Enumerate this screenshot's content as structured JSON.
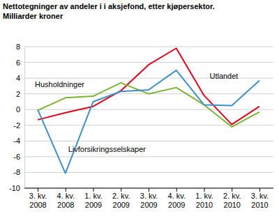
{
  "chart_data": {
    "type": "line",
    "title": "Nettotegninger av andeler i i aksjefond, etter kjøpersektor.",
    "subtitle": "Milliarder kroner",
    "categories": [
      "3. kv. 2008",
      "4. kv. 2008",
      "1. kv. 2009",
      "2. kv. 2009",
      "3. kv. 2009",
      "4. kv. 2009",
      "1. kv. 2010",
      "2. kv. 2010",
      "3. kv. 2010"
    ],
    "series": [
      {
        "name": "Utlandet",
        "color": "#e2001a",
        "values": [
          -1.3,
          -0.4,
          0.4,
          2.4,
          5.7,
          7.8,
          1.8,
          -1.9,
          0.4
        ]
      },
      {
        "name": "Husholdninger",
        "color": "#7ab531",
        "values": [
          -0.1,
          1.5,
          1.7,
          3.4,
          2.0,
          2.8,
          0.6,
          -2.2,
          -0.3
        ]
      },
      {
        "name": "Livforsikringsselskaper",
        "color": "#3d8fc6",
        "values": [
          0.0,
          -8.1,
          1.0,
          2.3,
          2.5,
          5.0,
          0.6,
          0.5,
          3.7
        ]
      }
    ],
    "ylim": [
      -10,
      8
    ],
    "yticks": [
      -10,
      -8,
      -6,
      -4,
      -2,
      0,
      2,
      4,
      6,
      8
    ],
    "grid": true
  }
}
